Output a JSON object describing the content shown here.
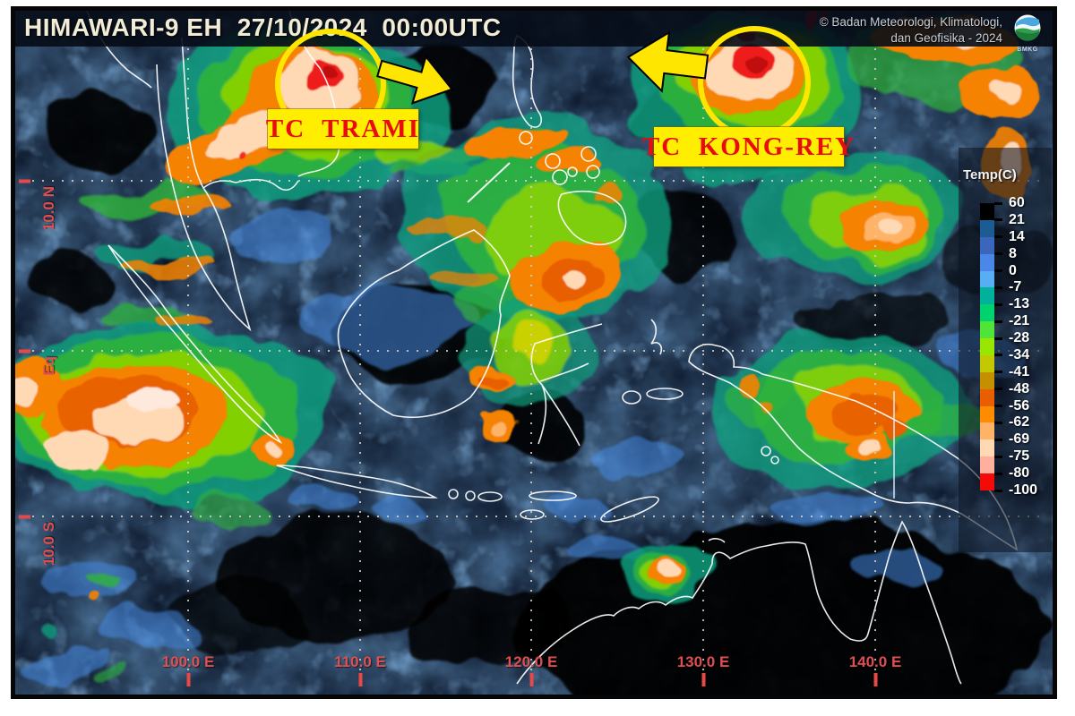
{
  "header": {
    "title": "HIMAWARI-9 EH  27/10/2024  00:00UTC",
    "credit_line1": "© Badan Meteorologi, Klimatologi,",
    "credit_line2": "dan Geofisika -  2024",
    "logo_text": "BMKG"
  },
  "annotations": {
    "trami_label": "TC  TRAMI",
    "kongrey_label": "TC  KONG-REY"
  },
  "axes": {
    "lat_labels": [
      "10.0 N",
      "Eq",
      "10.0 S"
    ],
    "lon_labels": [
      "100.0 E",
      "110.0 E",
      "120.0 E",
      "130.0 E",
      "140.0 E"
    ]
  },
  "legend": {
    "title": "Temp(C)",
    "ticks": [
      "60",
      "21",
      "14",
      "8",
      "0",
      "-7",
      "-13",
      "-21",
      "-28",
      "-34",
      "-41",
      "-48",
      "-56",
      "-62",
      "-69",
      "-75",
      "-80",
      "-100"
    ],
    "segment_colors": [
      "#000000",
      "#1c5c94",
      "#3a66bb",
      "#4b87e8",
      "#58aef2",
      "#00b29b",
      "#00d26f",
      "#4fe437",
      "#97e700",
      "#c3c800",
      "#c49000",
      "#e85e00",
      "#ff8c00",
      "#ffb366",
      "#ffd9b3",
      "#ffaf9e",
      "#f60909"
    ]
  },
  "colors": {
    "annotation_yellow": "#ffe600",
    "storm_text_red": "#ea0c0c",
    "axis_label_red": "#e04f4f"
  }
}
